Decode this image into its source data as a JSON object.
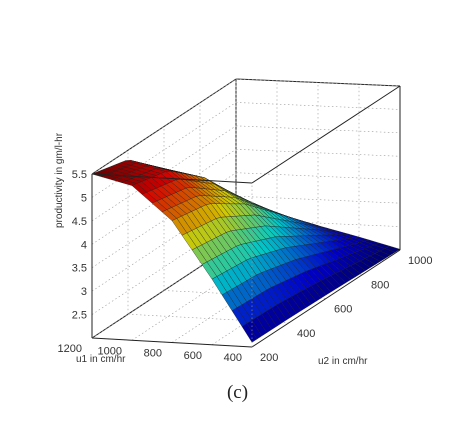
{
  "chart_data": {
    "type": "surface3d",
    "caption": "(c)",
    "xlabel": "u1 in cm/hr",
    "ylabel": "u2 in cm/hr",
    "zlabel": "productivity in gm/l-hr",
    "x_range": [
      400,
      1200
    ],
    "y_range": [
      200,
      1000
    ],
    "z_range": [
      2.0,
      5.5
    ],
    "x_ticks": [
      400,
      600,
      800,
      1000,
      1200
    ],
    "y_ticks": [
      200,
      400,
      600,
      800,
      1000
    ],
    "z_ticks": [
      2.5,
      3,
      3.5,
      4,
      4.5,
      5,
      5.5
    ],
    "grid": true,
    "colormap": "jet",
    "u1_samples": [
      400,
      600,
      800,
      1000,
      1200
    ],
    "productivity_vs_u1": [
      2.1,
      3.4,
      4.6,
      5.3,
      5.5
    ],
    "u2_samples": [
      200,
      400,
      600,
      800,
      1000
    ],
    "productivity_vs_u2": [
      5.5,
      5.3,
      4.6,
      3.6,
      2.6
    ]
  }
}
